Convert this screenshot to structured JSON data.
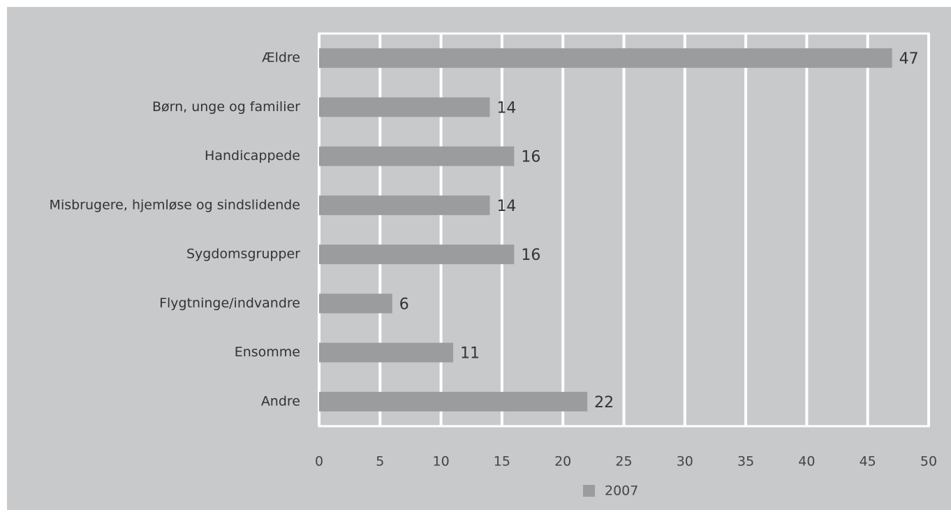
{
  "chart_data": {
    "type": "bar",
    "orientation": "horizontal",
    "categories": [
      "Ældre",
      "Børn, unge og familier",
      "Handicappede",
      "Misbrugere, hjemløse og sindslidende",
      "Sygdomsgrupper",
      "Flygtninge/indvandre",
      "Ensomme",
      "Andre"
    ],
    "series": [
      {
        "name": "2007",
        "color": "#9b9c9e",
        "values": [
          47,
          14,
          16,
          14,
          16,
          6,
          11,
          22
        ]
      }
    ],
    "xlim": [
      0,
      50
    ],
    "xticks": [
      0,
      5,
      10,
      15,
      20,
      25,
      30,
      35,
      40,
      45,
      50
    ],
    "grid": true,
    "legend": "bottom"
  }
}
